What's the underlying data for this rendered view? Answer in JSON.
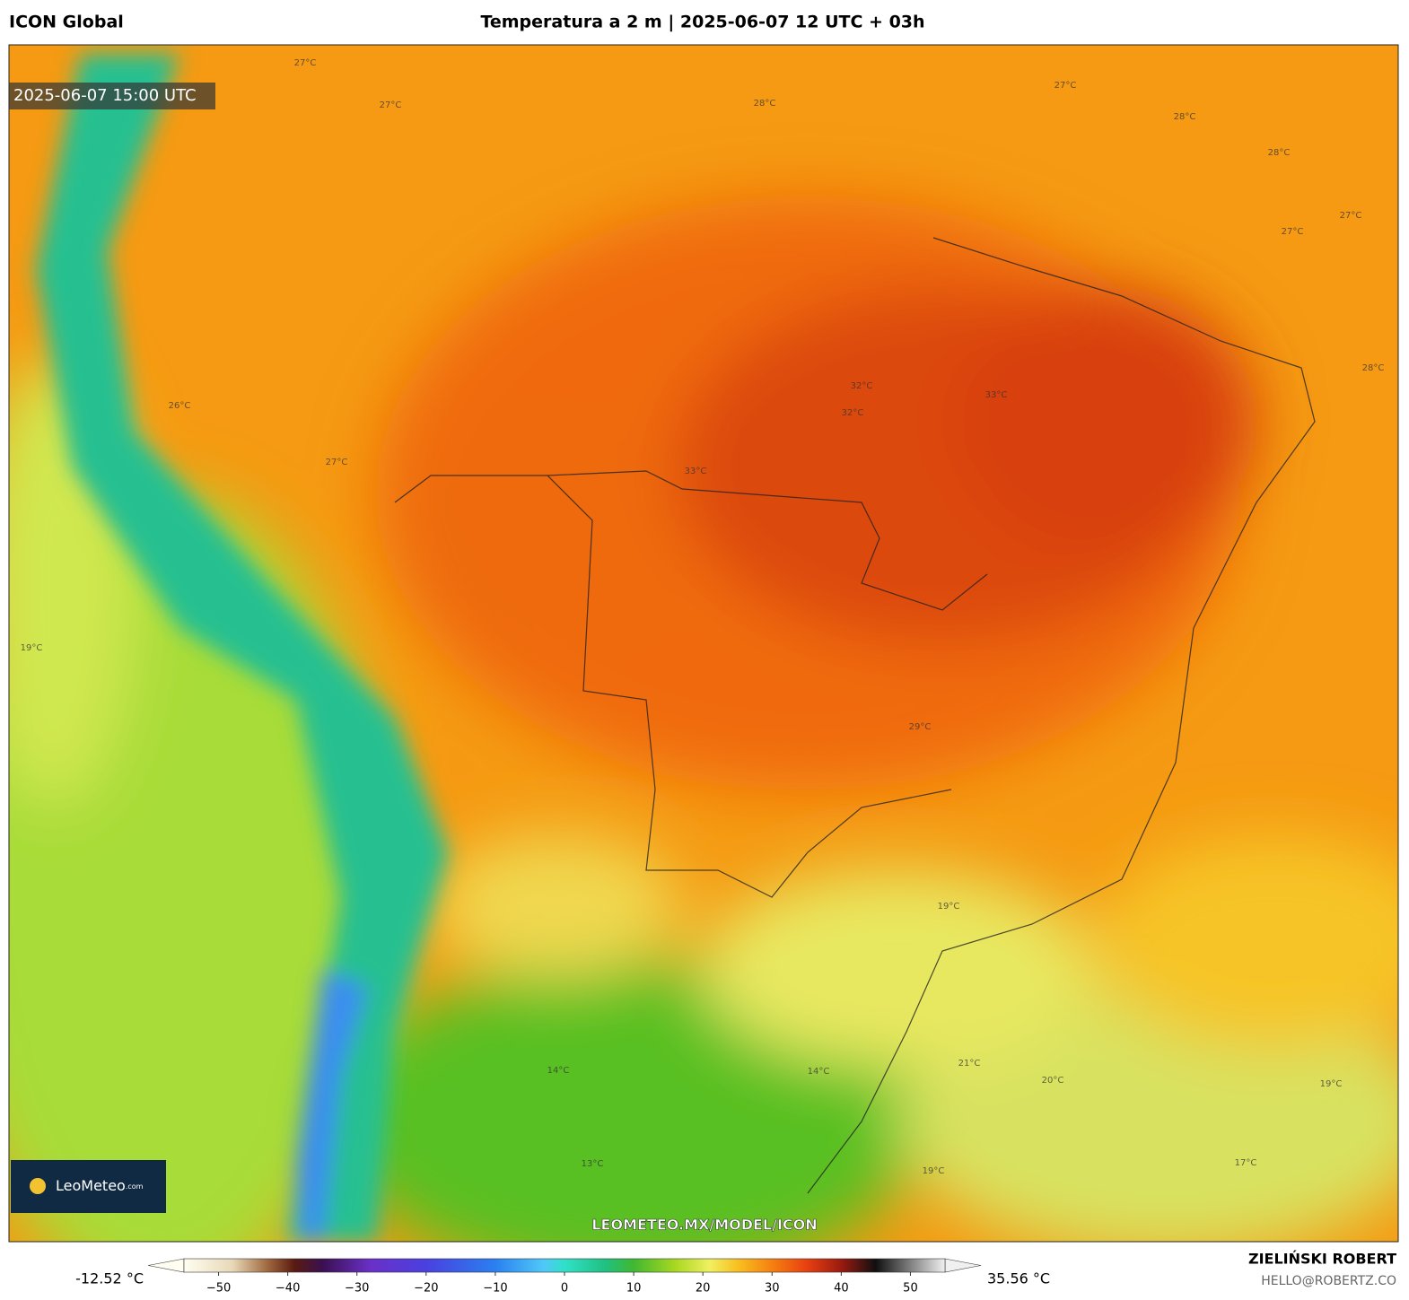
{
  "header": {
    "model": "ICON Global",
    "title": "Temperatura a 2 m | 2025-06-07 12 UTC + 03h"
  },
  "map": {
    "valid_time": "2025-06-07 15:00 UTC",
    "logo": "LeoMeteo",
    "logo_suffix": ".com",
    "watermark": "LEOMETEO.MX/MODEL/ICON",
    "contour_labels": [
      "27°C",
      "27°C",
      "28°C",
      "27°C",
      "28°C",
      "28°C",
      "27°C",
      "27°C",
      "28°C",
      "32°C",
      "32°C",
      "33°C",
      "33°C",
      "26°C",
      "27°C",
      "19°C",
      "29°C",
      "19°C",
      "19°C",
      "17°C",
      "19°C",
      "20°C",
      "13°C",
      "14°C",
      "14°C",
      "21°C"
    ]
  },
  "colorbar": {
    "min_label": "-12.52 °C",
    "max_label": "35.56 °C",
    "range": [
      -55,
      55
    ],
    "ticks": [
      {
        "value": -50,
        "label": "−50"
      },
      {
        "value": -40,
        "label": "−40"
      },
      {
        "value": -30,
        "label": "−30"
      },
      {
        "value": -20,
        "label": "−20"
      },
      {
        "value": -10,
        "label": "−10"
      },
      0,
      10,
      20,
      30,
      40,
      50
    ],
    "colormap": [
      {
        "value": -55,
        "color": "#fffef0"
      },
      {
        "value": -48,
        "color": "#e8d8b8"
      },
      {
        "value": -43,
        "color": "#a06a40"
      },
      {
        "value": -39,
        "color": "#5a1a10"
      },
      {
        "value": -35,
        "color": "#3a1050"
      },
      {
        "value": -28,
        "color": "#6a30c8"
      },
      {
        "value": -20,
        "color": "#4a40e0"
      },
      {
        "value": -10,
        "color": "#2a80f0"
      },
      {
        "value": -3,
        "color": "#50c8f8"
      },
      {
        "value": 0,
        "color": "#30e0c8"
      },
      {
        "value": 6,
        "color": "#20c080"
      },
      {
        "value": 10,
        "color": "#40b830"
      },
      {
        "value": 16,
        "color": "#a8d820"
      },
      {
        "value": 21,
        "color": "#f0f060"
      },
      {
        "value": 25,
        "color": "#f8c020"
      },
      {
        "value": 30,
        "color": "#f58010"
      },
      {
        "value": 35,
        "color": "#e84010"
      },
      {
        "value": 40,
        "color": "#9a1a10"
      },
      {
        "value": 45,
        "color": "#101010"
      },
      {
        "value": 50,
        "color": "#808080"
      },
      {
        "value": 55,
        "color": "#f0f0f0"
      }
    ]
  },
  "credit": {
    "author": "ZIELIŃSKI ROBERT",
    "email": "HELLO@ROBERTZ.CO"
  }
}
